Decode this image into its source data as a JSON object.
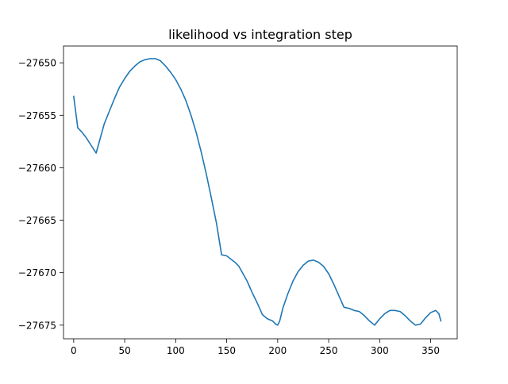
{
  "chart_data": {
    "type": "line",
    "title": "likelihood vs integration step",
    "xlabel": "",
    "ylabel": "",
    "xlim": [
      -10,
      376
    ],
    "ylim": [
      -27676.3,
      -27648.4
    ],
    "xticks": [
      0,
      50,
      100,
      150,
      200,
      250,
      300,
      350
    ],
    "yticks": [
      -27650,
      -27655,
      -27660,
      -27665,
      -27670,
      -27675
    ],
    "xtick_labels": [
      "0",
      "50",
      "100",
      "150",
      "200",
      "250",
      "300",
      "350"
    ],
    "ytick_labels": [
      "−27650",
      "−27655",
      "−27660",
      "−27665",
      "−27670",
      "−27675"
    ],
    "grid": false,
    "line_color": "#1f77b4",
    "series": [
      {
        "x": [
          0,
          4,
          8,
          12,
          16,
          20,
          22,
          26,
          30,
          35,
          40,
          45,
          50,
          55,
          60,
          65,
          70,
          75,
          80,
          85,
          90,
          95,
          100,
          105,
          110,
          115,
          120,
          125,
          130,
          135,
          140,
          145,
          150,
          154,
          158,
          162,
          166,
          170,
          175,
          180,
          185,
          190,
          195,
          198,
          200,
          202,
          205,
          210,
          215,
          220,
          225,
          230,
          235,
          240,
          245,
          250,
          255,
          260,
          265,
          270,
          275,
          280,
          285,
          290,
          295,
          300,
          305,
          310,
          315,
          320,
          325,
          330,
          335,
          340,
          345,
          350,
          355,
          358,
          360
        ],
        "y": [
          -27653.2,
          -27656.2,
          -27656.6,
          -27657.1,
          -27657.7,
          -27658.3,
          -27658.6,
          -27657.2,
          -27655.8,
          -27654.6,
          -27653.4,
          -27652.3,
          -27651.5,
          -27650.8,
          -27650.3,
          -27649.9,
          -27649.7,
          -27649.6,
          -27649.6,
          -27649.8,
          -27650.3,
          -27650.9,
          -27651.6,
          -27652.5,
          -27653.6,
          -27655.0,
          -27656.6,
          -27658.5,
          -27660.6,
          -27662.9,
          -27665.3,
          -27668.3,
          -27668.4,
          -27668.7,
          -27669.0,
          -27669.4,
          -27670.1,
          -27670.8,
          -27671.9,
          -27672.9,
          -27674.0,
          -27674.4,
          -27674.6,
          -27674.9,
          -27675.0,
          -27674.6,
          -27673.4,
          -27672.0,
          -27670.8,
          -27669.9,
          -27669.3,
          -27668.9,
          -27668.8,
          -27669.0,
          -27669.4,
          -27670.1,
          -27671.1,
          -27672.2,
          -27673.3,
          -27673.4,
          -27673.6,
          -27673.7,
          -27674.1,
          -27674.6,
          -27675.0,
          -27674.4,
          -27673.9,
          -27673.6,
          -27673.6,
          -27673.7,
          -27674.1,
          -27674.6,
          -27675.0,
          -27674.9,
          -27674.3,
          -27673.8,
          -27673.6,
          -27673.9,
          -27674.6
        ]
      }
    ]
  }
}
